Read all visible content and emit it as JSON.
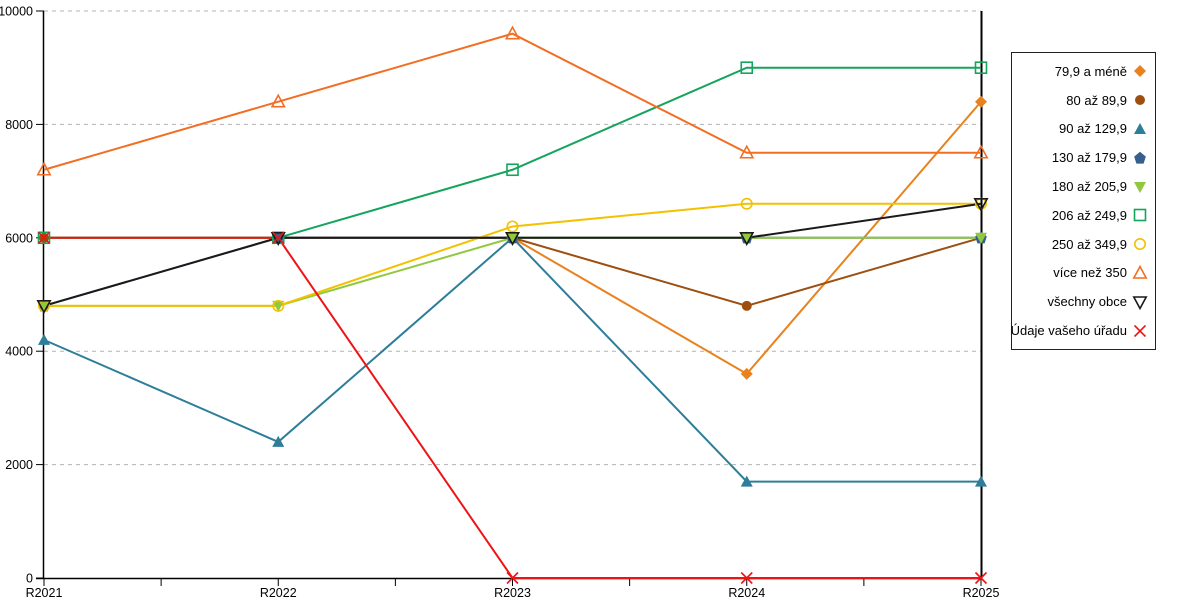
{
  "chart_data": {
    "type": "line",
    "title": "",
    "xlabel": "",
    "ylabel": "",
    "x_categories": [
      "R2021",
      "R2022",
      "R2023",
      "R2024",
      "R2025"
    ],
    "ylim": [
      0,
      10000
    ],
    "y_ticks": [
      0,
      2000,
      4000,
      6000,
      8000,
      10000
    ],
    "grid": "horizontal-dashed",
    "legend_position": "right",
    "background_color": "#ffffff",
    "axis_color": "#000000",
    "grid_color": "#b3b3b3",
    "series": [
      {
        "name": "79,9 a méně",
        "color": "#E8821E",
        "marker": "diamond-filled",
        "values": [
          6000,
          6000,
          6000,
          3600,
          8400
        ]
      },
      {
        "name": "80 až 89,9",
        "color": "#9C4F10",
        "marker": "circle-filled",
        "values": [
          6000,
          6000,
          6000,
          4800,
          6000
        ]
      },
      {
        "name": "90 až 129,9",
        "color": "#2E7E99",
        "marker": "triangle-up-filled",
        "values": [
          4200,
          2400,
          6000,
          1700,
          1700
        ]
      },
      {
        "name": "130 až 179,9",
        "color": "#355F8D",
        "marker": "pentagon-filled",
        "values": [
          4800,
          6000,
          6000,
          6000,
          6000
        ]
      },
      {
        "name": "180 až 205,9",
        "color": "#92C83E",
        "marker": "triangle-down-filled",
        "values": [
          4800,
          4800,
          6000,
          6000,
          6000
        ]
      },
      {
        "name": "206 až 249,9",
        "color": "#14A45C",
        "marker": "square-open",
        "values": [
          6000,
          6000,
          7200,
          9000,
          9000
        ]
      },
      {
        "name": "250 až 349,9",
        "color": "#F2C200",
        "marker": "circle-open",
        "values": [
          4800,
          4800,
          6200,
          6600,
          6600
        ]
      },
      {
        "name": "více než 350",
        "color": "#F26E22",
        "marker": "triangle-up-open",
        "values": [
          7200,
          8400,
          9600,
          7500,
          7500
        ]
      },
      {
        "name": "všechny obce",
        "color": "#1A1A1A",
        "marker": "triangle-down-open",
        "values": [
          4800,
          6000,
          6000,
          6000,
          6600
        ]
      },
      {
        "name": "Údaje vašeho úřadu",
        "color": "#EE1414",
        "marker": "x",
        "values": [
          6000,
          6000,
          0,
          0,
          0
        ]
      }
    ]
  }
}
